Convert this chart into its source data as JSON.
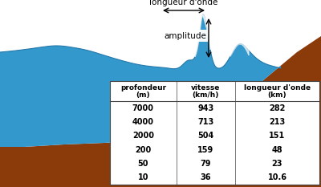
{
  "bg_color": "#ffffff",
  "ocean_color": "#3399cc",
  "ocean_edge_color": "#2277aa",
  "ground_color": "#8B3A0A",
  "text_color": "#000000",
  "longueur_onde_label": "longueur d'onde",
  "amplitude_label": "amplitude",
  "table_headers_line1": [
    "profondeur",
    "vitesse",
    "longueur d'onde"
  ],
  "table_headers_line2": [
    "(m)",
    "(km/h)",
    "(km)"
  ],
  "table_data": [
    [
      "7000",
      "943",
      "282"
    ],
    [
      "4000",
      "713",
      "213"
    ],
    [
      "2000",
      "504",
      "151"
    ],
    [
      "200",
      "159",
      "48"
    ],
    [
      "50",
      "79",
      "23"
    ],
    [
      "10",
      "36",
      "10.6"
    ]
  ],
  "figsize": [
    4.0,
    2.33
  ],
  "dpi": 100
}
